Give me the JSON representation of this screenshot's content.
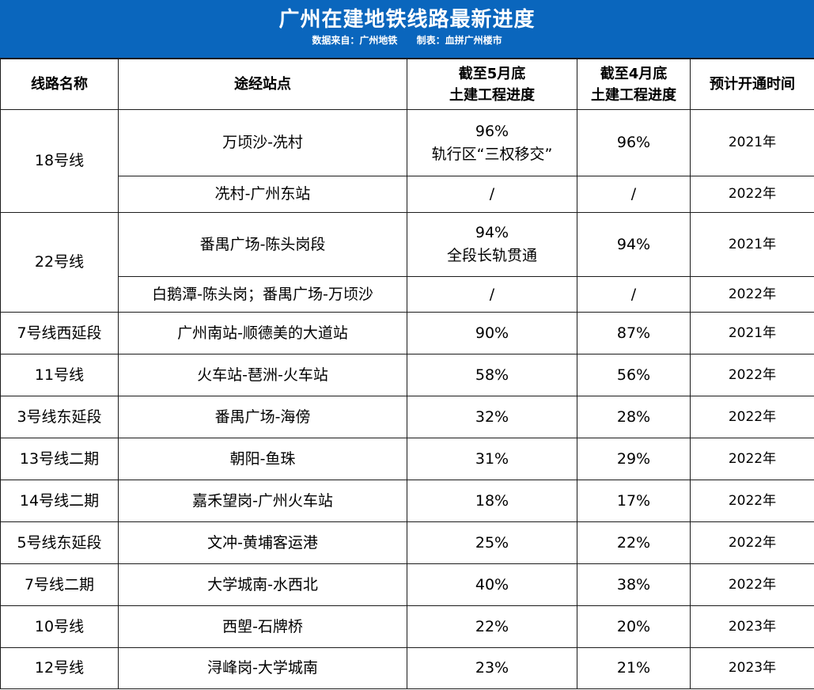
{
  "title": "广州在建地铁线路最新进度",
  "source": "数据来自：广州地铁",
  "maker": "制表：血拼广州楼市",
  "headers": {
    "line": "线路名称",
    "stations": "途经站点",
    "may_l1": "截至5月底",
    "may_l2": "土建工程进度",
    "apr_l1": "截至4月底",
    "apr_l2": "土建工程进度",
    "open": "预计开通时间"
  },
  "rows": [
    {
      "line": "18号线",
      "stations": "万顷沙-冼村",
      "may": "96%",
      "may_note": "轨行区“三权移交”",
      "apr": "96%",
      "open": "2021年"
    },
    {
      "line": "18号线",
      "stations": "冼村-广州东站",
      "may": "/",
      "may_note": "",
      "apr": "/",
      "open": "2022年"
    },
    {
      "line": "22号线",
      "stations": "番禺广场-陈头岗段",
      "may": "94%",
      "may_note": "全段长轨贯通",
      "apr": "94%",
      "open": "2021年"
    },
    {
      "line": "22号线",
      "stations": "白鹅潭-陈头岗；番禺广场-万顷沙",
      "may": "/",
      "may_note": "",
      "apr": "/",
      "open": "2022年"
    },
    {
      "line": "7号线西延段",
      "stations": "广州南站-顺德美的大道站",
      "may": "90%",
      "may_note": "",
      "apr": "87%",
      "open": "2021年"
    },
    {
      "line": "11号线",
      "stations": "火车站-琶洲-火车站",
      "may": "58%",
      "may_note": "",
      "apr": "56%",
      "open": "2022年"
    },
    {
      "line": "3号线东延段",
      "stations": "番禺广场-海傍",
      "may": "32%",
      "may_note": "",
      "apr": "28%",
      "open": "2022年"
    },
    {
      "line": "13号线二期",
      "stations": "朝阳-鱼珠",
      "may": "31%",
      "may_note": "",
      "apr": "29%",
      "open": "2022年"
    },
    {
      "line": "14号线二期",
      "stations": "嘉禾望岗-广州火车站",
      "may": "18%",
      "may_note": "",
      "apr": "17%",
      "open": "2022年"
    },
    {
      "line": "5号线东延段",
      "stations": "文冲-黄埔客运港",
      "may": "25%",
      "may_note": "",
      "apr": "22%",
      "open": "2022年"
    },
    {
      "line": "7号线二期",
      "stations": "大学城南-水西北",
      "may": "40%",
      "may_note": "",
      "apr": "38%",
      "open": "2022年"
    },
    {
      "line": "10号线",
      "stations": "西塱-石牌桥",
      "may": "22%",
      "may_note": "",
      "apr": "20%",
      "open": "2023年"
    },
    {
      "line": "12号线",
      "stations": "浔峰岗-大学城南",
      "may": "23%",
      "may_note": "",
      "apr": "21%",
      "open": "2023年"
    }
  ]
}
